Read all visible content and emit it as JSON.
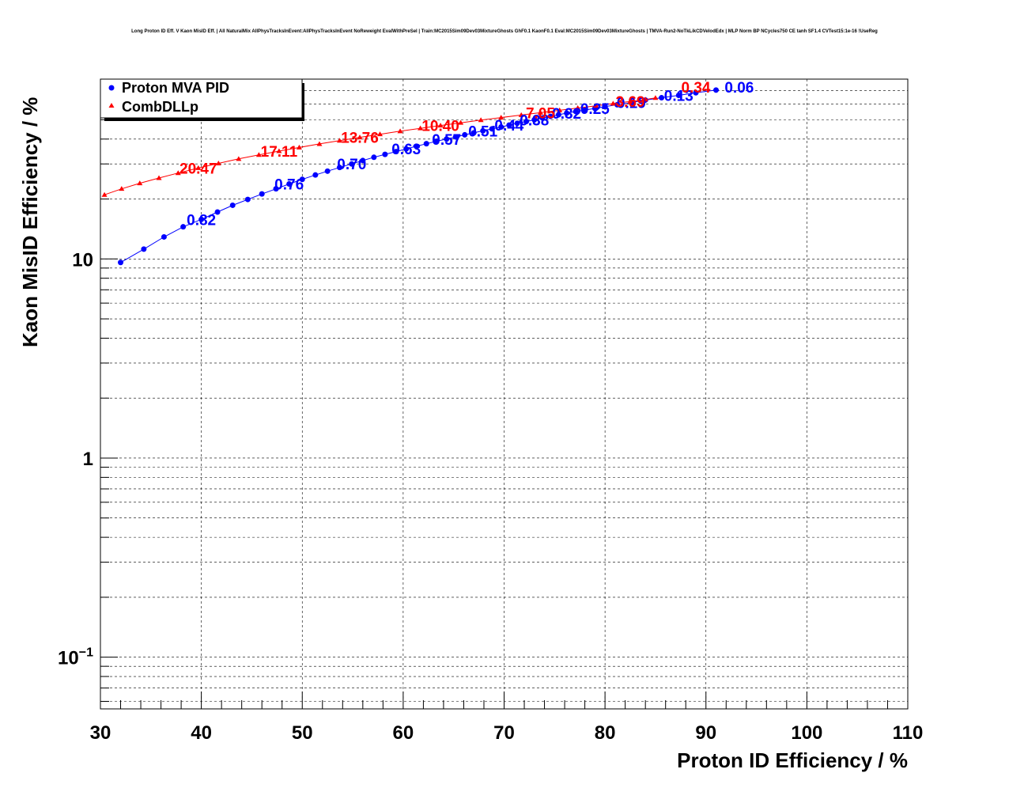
{
  "chart_data": {
    "type": "line",
    "title": "Long Proton ID Eff. V Kaon MisID Eff. | All NaturalMix AllPhysTracksInEvent:AllPhysTracksInEvent NoReweight EvalWithPreSel | Train:MC2015Sim09Dev03MixtureGhosts GhF0.1 KaonF0.1 Eval:MC2015Sim09Dev03MixtureGhosts | TMVA-Run2-NoTkLikCDVelodEdx | MLP Norm BP NCycles750 CE tanh SF1.4 CVTest15:1e-16 !UseReg",
    "xlabel": "Proton ID Efficiency / %",
    "ylabel": "Kaon MisID Efficiency / %",
    "xlim": [
      30,
      110
    ],
    "ylim": [
      0.055,
      80
    ],
    "yscale": "log",
    "grid": true,
    "legend_position": "top-left",
    "x_ticks": [
      "30",
      "40",
      "50",
      "60",
      "70",
      "80",
      "90",
      "100",
      "110"
    ],
    "y_ticks": [
      {
        "value": 10,
        "base": "10",
        "exp": ""
      },
      {
        "value": 1,
        "base": "1",
        "exp": ""
      },
      {
        "value": 0.1,
        "base": "10",
        "exp": "−1"
      }
    ],
    "series": [
      {
        "name": "Proton MVA PID",
        "color": "#0000ff",
        "marker": "circle",
        "x": [
          32.0,
          34.3,
          36.3,
          38.2,
          40.0,
          41.6,
          43.1,
          44.6,
          46.0,
          47.4,
          48.7,
          50.0,
          51.3,
          52.5,
          53.7,
          54.9,
          56.0,
          57.1,
          58.2,
          59.3,
          60.3,
          61.3,
          62.3,
          63.3,
          64.3,
          65.2,
          66.1,
          67.0,
          67.9,
          68.8,
          69.7,
          70.5,
          71.3,
          72.2,
          73.0,
          73.8,
          74.6,
          75.4,
          76.2,
          77.1,
          78.0,
          79.0,
          80.0,
          81.2,
          82.6,
          84.0,
          85.6,
          87.3,
          89.0,
          91.0
        ],
        "values": [
          9.6,
          11.2,
          12.9,
          14.5,
          15.8,
          17.2,
          18.6,
          19.9,
          21.2,
          22.5,
          23.8,
          25.1,
          26.4,
          27.6,
          28.8,
          30.0,
          31.2,
          32.4,
          33.5,
          34.6,
          35.7,
          36.8,
          37.9,
          39.0,
          40.0,
          41.0,
          42.0,
          43.0,
          44.0,
          45.0,
          46.0,
          47.0,
          48.0,
          49.0,
          50.0,
          51.0,
          52.0,
          53.0,
          54.0,
          55.0,
          56.0,
          57.0,
          58.2,
          59.5,
          61.0,
          62.8,
          64.5,
          66.3,
          68.3,
          70.5
        ],
        "annotations": [
          {
            "x": 40.0,
            "y": 15.8,
            "text": "0.82"
          },
          {
            "x": 48.7,
            "y": 23.8,
            "text": "0.76"
          },
          {
            "x": 54.9,
            "y": 30.0,
            "text": "0.70"
          },
          {
            "x": 60.3,
            "y": 35.7,
            "text": "0.63"
          },
          {
            "x": 64.3,
            "y": 40.0,
            "text": "0.57"
          },
          {
            "x": 67.9,
            "y": 44.0,
            "text": "0.51"
          },
          {
            "x": 70.5,
            "y": 47.0,
            "text": "0.44"
          },
          {
            "x": 73.0,
            "y": 50.0,
            "text": "0.38"
          },
          {
            "x": 76.2,
            "y": 54.0,
            "text": "0.32"
          },
          {
            "x": 79.0,
            "y": 57.0,
            "text": "0.25"
          },
          {
            "x": 82.6,
            "y": 61.0,
            "text": "0.19"
          },
          {
            "x": 87.3,
            "y": 66.3,
            "text": "0.13"
          },
          {
            "x": 93.3,
            "y": 73.0,
            "text": "0.06"
          }
        ]
      },
      {
        "name": "CombDLLp",
        "color": "#ff0000",
        "marker": "triangle",
        "x": [
          30.4,
          32.1,
          33.9,
          35.8,
          37.7,
          39.7,
          41.7,
          43.7,
          45.7,
          47.7,
          49.7,
          51.7,
          53.7,
          55.7,
          57.7,
          59.7,
          61.7,
          63.7,
          65.7,
          67.7,
          69.7,
          71.7,
          73.6,
          75.5,
          77.3,
          79.1,
          80.8,
          82.5,
          84.0,
          85.0
        ],
        "values": [
          21.0,
          22.5,
          24.0,
          25.5,
          27.0,
          28.6,
          30.2,
          31.8,
          33.3,
          34.8,
          36.3,
          37.8,
          39.3,
          40.8,
          42.3,
          43.8,
          45.3,
          46.8,
          48.3,
          49.8,
          51.3,
          52.8,
          54.3,
          55.8,
          57.3,
          58.8,
          60.3,
          61.8,
          63.2,
          64.4
        ],
        "annotations": [
          {
            "x": 39.7,
            "y": 28.6,
            "text": "20.47"
          },
          {
            "x": 47.7,
            "y": 34.8,
            "text": "17.11"
          },
          {
            "x": 55.7,
            "y": 40.8,
            "text": "13.76"
          },
          {
            "x": 63.7,
            "y": 46.8,
            "text": "10.40"
          },
          {
            "x": 73.6,
            "y": 54.3,
            "text": "7.05"
          },
          {
            "x": 82.5,
            "y": 61.8,
            "text": "3.69"
          },
          {
            "x": 89.0,
            "y": 73.0,
            "text": "0.34"
          }
        ]
      }
    ]
  }
}
